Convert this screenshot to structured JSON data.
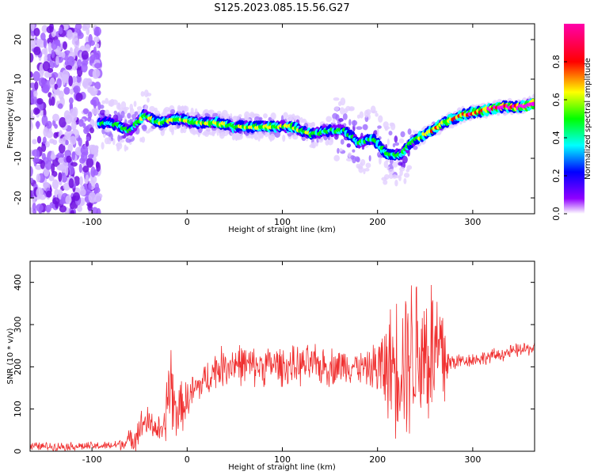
{
  "title": "S125.2023.085.15.56.G27",
  "chart_data": [
    {
      "type": "heatmap",
      "xlabel": "Height of straight line (km)",
      "ylabel": "Frequency (Hz)",
      "xlim": [
        -165,
        365
      ],
      "ylim": [
        -24,
        24
      ],
      "xticks": [
        -100,
        0,
        100,
        200,
        300
      ],
      "yticks": [
        -20,
        -10,
        0,
        10,
        20
      ],
      "colorbar": {
        "label": "Normalized spectral amplitude",
        "range": [
          0.0,
          1.0
        ],
        "ticks": [
          "0.0",
          "0.2",
          "0.4",
          "0.6",
          "0.8"
        ],
        "colors": [
          "#ffffff",
          "#8000ff",
          "#0000ff",
          "#00ffff",
          "#00ff00",
          "#ffff00",
          "#ff0000",
          "#ff00ff"
        ]
      },
      "ridge": [
        [
          -95,
          -1
        ],
        [
          -80,
          -1
        ],
        [
          -60,
          -3
        ],
        [
          -45,
          1
        ],
        [
          -30,
          -1
        ],
        [
          -10,
          0
        ],
        [
          10,
          -1
        ],
        [
          30,
          -1
        ],
        [
          50,
          -2
        ],
        [
          70,
          -2
        ],
        [
          90,
          -2
        ],
        [
          110,
          -2
        ],
        [
          130,
          -4
        ],
        [
          150,
          -3
        ],
        [
          165,
          -3
        ],
        [
          180,
          -6
        ],
        [
          195,
          -5
        ],
        [
          210,
          -9
        ],
        [
          225,
          -9
        ],
        [
          235,
          -6
        ],
        [
          250,
          -4
        ],
        [
          270,
          -1
        ],
        [
          290,
          1
        ],
        [
          310,
          2
        ],
        [
          330,
          3
        ],
        [
          350,
          3
        ],
        [
          365,
          4
        ]
      ]
    },
    {
      "type": "line",
      "xlabel": "Height of straight line (km)",
      "ylabel": "SNR (10 * v/v)",
      "xlim": [
        -165,
        365
      ],
      "ylim": [
        0,
        450
      ],
      "xticks": [
        -100,
        0,
        100,
        200,
        300
      ],
      "yticks": [
        0,
        100,
        200,
        300,
        400
      ],
      "color": "#f03030",
      "x": [
        -165,
        -140,
        -120,
        -100,
        -80,
        -65,
        -55,
        -45,
        -35,
        -25,
        -18,
        -12,
        0,
        10,
        20,
        30,
        50,
        70,
        90,
        110,
        130,
        150,
        170,
        190,
        210,
        220,
        230,
        240,
        250,
        260,
        270,
        275,
        290,
        310,
        330,
        350,
        365
      ],
      "y": [
        12,
        11,
        12,
        12,
        13,
        20,
        35,
        70,
        60,
        40,
        170,
        90,
        120,
        150,
        170,
        195,
        210,
        200,
        205,
        200,
        205,
        200,
        205,
        195,
        200,
        210,
        230,
        240,
        240,
        230,
        220,
        210,
        215,
        220,
        230,
        240,
        245
      ],
      "spread": [
        12,
        12,
        12,
        12,
        12,
        20,
        40,
        50,
        40,
        40,
        150,
        80,
        60,
        50,
        50,
        55,
        60,
        55,
        55,
        55,
        55,
        55,
        50,
        45,
        140,
        200,
        230,
        240,
        240,
        230,
        200,
        30,
        20,
        20,
        20,
        20,
        20
      ]
    }
  ]
}
